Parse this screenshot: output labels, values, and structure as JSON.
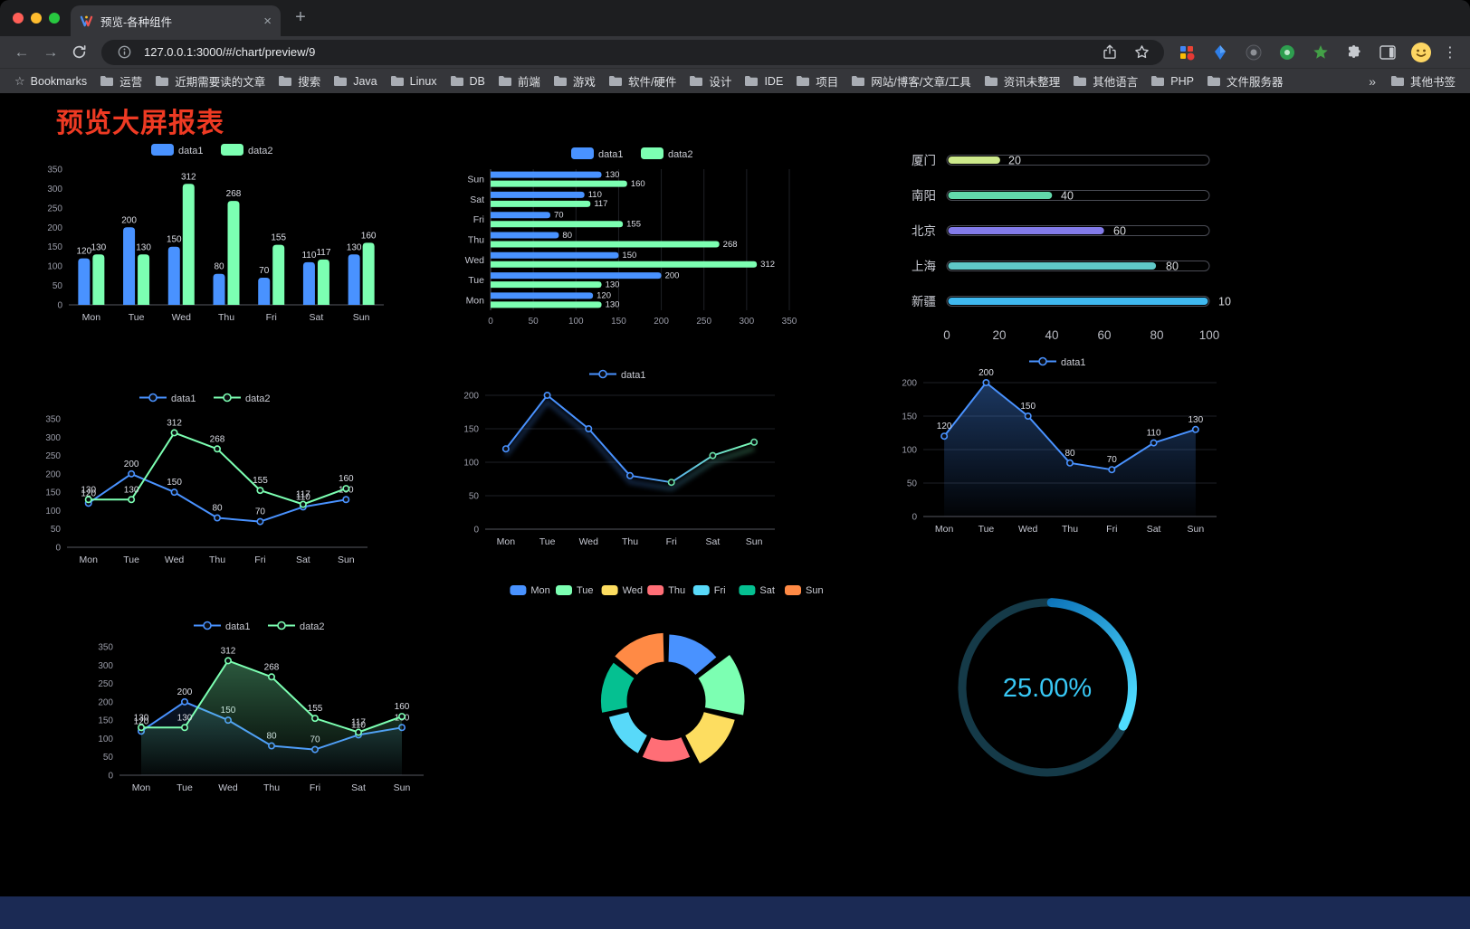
{
  "browser": {
    "tab": {
      "title": "预览-各种组件"
    },
    "address": {
      "url": "127.0.0.1:3000/#/chart/preview/9"
    },
    "bookmarks_bar": {
      "label": "Bookmarks",
      "folders": [
        "运营",
        "近期需要读的文章",
        "搜索",
        "Java",
        "Linux",
        "DB",
        "前端",
        "游戏",
        "软件/硬件",
        "设计",
        "IDE",
        "项目",
        "网站/博客/文章/工具",
        "资讯未整理",
        "其他语言",
        "PHP",
        "文件服务器"
      ],
      "overflow": "»",
      "other": "其他书签"
    }
  },
  "icons": {
    "back": "←",
    "forward": "→",
    "close": "×",
    "plus": "+",
    "kebab": "⋮"
  },
  "page": {
    "title": "预览大屏报表"
  },
  "chart_data": [
    {
      "id": "bar-vertical",
      "type": "bar",
      "categories": [
        "Mon",
        "Tue",
        "Wed",
        "Thu",
        "Fri",
        "Sat",
        "Sun"
      ],
      "series": [
        {
          "name": "data1",
          "color": "#4992ff",
          "values": [
            120,
            200,
            150,
            80,
            70,
            110,
            130
          ]
        },
        {
          "name": "data2",
          "color": "#7cffb2",
          "values": [
            130,
            130,
            312,
            268,
            155,
            117,
            160
          ]
        }
      ],
      "ylim": [
        0,
        350
      ],
      "ytick_step": 50,
      "legend_position": "top",
      "grid": false
    },
    {
      "id": "bar-horizontal",
      "type": "bar",
      "orientation": "horizontal",
      "categories": [
        "Mon",
        "Tue",
        "Wed",
        "Thu",
        "Fri",
        "Sat",
        "Sun"
      ],
      "series": [
        {
          "name": "data1",
          "color": "#4992ff",
          "values": [
            120,
            200,
            150,
            80,
            70,
            110,
            130
          ]
        },
        {
          "name": "data2",
          "color": "#7cffb2",
          "values": [
            130,
            130,
            312,
            268,
            155,
            117,
            160
          ]
        }
      ],
      "xlim": [
        0,
        350
      ],
      "xtick_step": 50,
      "legend_position": "top",
      "grid": true
    },
    {
      "id": "progress",
      "type": "bar",
      "style": "progress",
      "categories": [
        "厦门",
        "南阳",
        "北京",
        "上海",
        "新疆"
      ],
      "values": [
        20,
        40,
        60,
        80,
        100
      ],
      "colors": [
        "#cde98b",
        "#62d9ab",
        "#837bea",
        "#5fc8c8",
        "#3fb9f0"
      ],
      "xlim": [
        0,
        100
      ],
      "xticks": [
        0,
        20,
        40,
        60,
        80,
        100
      ]
    },
    {
      "id": "line-two",
      "type": "line",
      "categories": [
        "Mon",
        "Tue",
        "Wed",
        "Thu",
        "Fri",
        "Sat",
        "Sun"
      ],
      "series": [
        {
          "name": "data1",
          "color": "#4992ff",
          "values": [
            120,
            200,
            150,
            80,
            70,
            110,
            130
          ]
        },
        {
          "name": "data2",
          "color": "#7cffb2",
          "values": [
            130,
            130,
            312,
            268,
            155,
            117,
            160
          ]
        }
      ],
      "ylim": [
        0,
        350
      ],
      "ytick_step": 50,
      "show_labels": true,
      "grid": false,
      "legend_position": "top"
    },
    {
      "id": "line-gradient",
      "type": "line",
      "categories": [
        "Mon",
        "Tue",
        "Wed",
        "Thu",
        "Fri",
        "Sat",
        "Sun"
      ],
      "series": [
        {
          "name": "data1",
          "color": "#4992ff",
          "gradient_to": "#7cffb2",
          "shadow": true,
          "values": [
            120,
            200,
            150,
            80,
            70,
            110,
            130
          ]
        }
      ],
      "ylim": [
        0,
        200
      ],
      "ytick_step": 50,
      "show_labels": false,
      "grid": true,
      "legend_position": "top"
    },
    {
      "id": "area-single",
      "type": "area",
      "categories": [
        "Mon",
        "Tue",
        "Wed",
        "Thu",
        "Fri",
        "Sat",
        "Sun"
      ],
      "series": [
        {
          "name": "data1",
          "color": "#4992ff",
          "area": true,
          "area_opacity": 0.38,
          "values": [
            120,
            200,
            150,
            80,
            70,
            110,
            130
          ]
        }
      ],
      "ylim": [
        0,
        200
      ],
      "ytick_step": 50,
      "show_labels": true,
      "grid": true,
      "legend_position": "top"
    },
    {
      "id": "area-two",
      "type": "area",
      "categories": [
        "Mon",
        "Tue",
        "Wed",
        "Thu",
        "Fri",
        "Sat",
        "Sun"
      ],
      "series": [
        {
          "name": "data1",
          "color": "#4992ff",
          "area": true,
          "area_opacity": 0.15,
          "values": [
            120,
            200,
            150,
            80,
            70,
            110,
            130
          ]
        },
        {
          "name": "data2",
          "color": "#7cffb2",
          "area": true,
          "area_opacity": 0.35,
          "values": [
            130,
            130,
            312,
            268,
            155,
            117,
            160
          ]
        }
      ],
      "ylim": [
        0,
        350
      ],
      "ytick_step": 50,
      "show_labels": true,
      "grid": false,
      "legend_position": "top"
    },
    {
      "id": "rose-pie",
      "type": "pie",
      "rose": true,
      "categories": [
        "Mon",
        "Tue",
        "Wed",
        "Thu",
        "Fri",
        "Sat",
        "Sun"
      ],
      "values": [
        120,
        200,
        150,
        80,
        70,
        110,
        130
      ],
      "colors": [
        "#4992ff",
        "#7cffb2",
        "#fddd60",
        "#ff6e76",
        "#58d9f9",
        "#05c091",
        "#ff8a45"
      ],
      "inner_radius_ratio": 0.48,
      "legend_position": "top"
    },
    {
      "id": "gauge",
      "type": "gauge",
      "value": 25,
      "max": 100,
      "label": "25.00%",
      "color": "#38c8f5",
      "track_color": "#153a48"
    }
  ]
}
